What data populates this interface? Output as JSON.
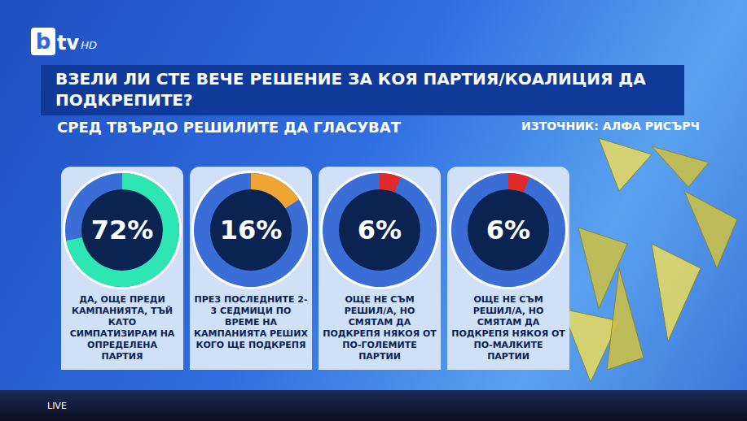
{
  "header": {
    "title": "ВЗЕЛИ ЛИ СТЕ ВЕЧЕ РЕШЕНИЕ ЗА КОЯ ПАРТИЯ/КОАЛИЦИЯ ДА ПОДКРЕПИТЕ?",
    "subtitle": "СРЕД ТВЪРДО РЕШИЛИТЕ ДА ГЛАСУВАТ",
    "source": "ИЗТОЧНИК: АЛФА РИСЪРЧ"
  },
  "overlay": {
    "logo": "btv",
    "logo_suffix": "HD",
    "live": "LIVE"
  },
  "chart_data": [
    {
      "type": "gauge",
      "values": [
        72
      ],
      "value_labels": [
        "72%"
      ],
      "ylim": [
        0,
        100
      ],
      "tick_labels": false,
      "data_labels": true,
      "color": "#2ee6b4",
      "caption": "ДА, ОЩЕ ПРЕДИ КАМПАНИЯТА, ТЪЙ КАТО СИМПАТИЗИРАМ НА ОПРЕДЕЛЕНА ПАРТИЯ"
    },
    {
      "type": "gauge",
      "values": [
        16
      ],
      "value_labels": [
        "16%"
      ],
      "ylim": [
        0,
        100
      ],
      "tick_labels": false,
      "data_labels": true,
      "color": "#f0a533",
      "caption": "ПРЕЗ ПОСЛЕДНИТЕ 2-3 СЕДМИЦИ ПО ВРЕМЕ НА КАМПАНИЯТА РЕШИХ КОГО ЩЕ ПОДКРЕПЯ"
    },
    {
      "type": "gauge",
      "values": [
        6
      ],
      "value_labels": [
        "6%"
      ],
      "ylim": [
        0,
        100
      ],
      "tick_labels": false,
      "data_labels": true,
      "color": "#e02a2a",
      "caption": "ОЩЕ НЕ СЪМ РЕШИЛ/А, НО СМЯТАМ ДА ПОДКРЕПЯ НЯКОЯ ОТ ПО-ГОЛЕМИТЕ ПАРТИИ"
    },
    {
      "type": "gauge",
      "values": [
        6
      ],
      "value_labels": [
        "6%"
      ],
      "ylim": [
        0,
        100
      ],
      "tick_labels": false,
      "data_labels": true,
      "color": "#e02a2a",
      "caption": "ОЩЕ НЕ СЪМ РЕШИЛ/А, НО СМЯТАМ ДА ПОДКРЕПЯ НЯКОЯ ОТ ПО-МАЛКИТЕ ПАРТИИ"
    }
  ]
}
